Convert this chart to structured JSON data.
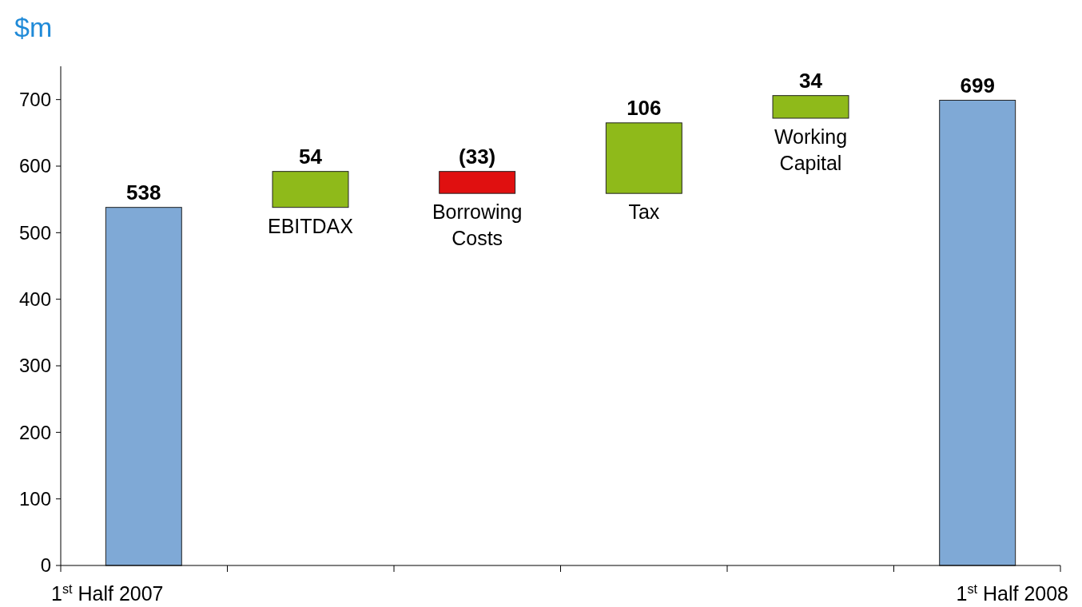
{
  "chart_data": {
    "type": "bar",
    "ylabel": "$m",
    "categories": [
      "1$^{st}$ Half 2007",
      "EBITDAX",
      "Borrowing Costs",
      "Tax",
      "Working Capital",
      "1$^{st}$ Half 2008"
    ],
    "values": [
      538,
      54,
      -33,
      106,
      34,
      699
    ],
    "base": [
      0,
      538,
      592,
      559,
      672,
      0
    ],
    "colors": [
      "#7fa9d6",
      "#8fba1a",
      "#e01010",
      "#8fba1a",
      "#8fba1a",
      "#7fa9d6"
    ],
    "value_labels": [
      "538",
      "54",
      "(33)",
      "106",
      "34",
      "699"
    ],
    "ylim": [
      0,
      750
    ],
    "yticks": [
      0,
      100,
      200,
      300,
      400,
      500,
      600,
      700
    ]
  }
}
